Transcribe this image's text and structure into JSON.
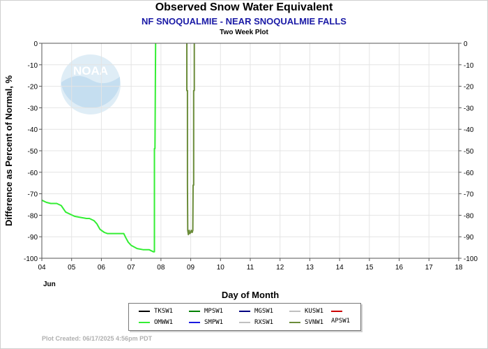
{
  "header": {
    "title": "Observed Snow Water Equivalent",
    "subtitle": "NF SNOQUALMIE - NEAR SNOQUALMIE FALLS",
    "subsubtitle": "Two Week Plot"
  },
  "footer": {
    "created": "Plot Created: 06/17/2025 4:56pm PDT"
  },
  "watermark": {
    "text": "NOAA"
  },
  "chart_data": {
    "type": "line",
    "title": "Observed Snow Water Equivalent",
    "xlabel": "Day of Month",
    "ylabel": "Difference as Percent of Normal, %",
    "month_label": "Jun",
    "xlim": [
      4,
      18
    ],
    "ylim": [
      -100,
      0
    ],
    "x_ticks": [
      "04",
      "05",
      "06",
      "07",
      "08",
      "09",
      "10",
      "11",
      "12",
      "13",
      "14",
      "15",
      "16",
      "17",
      "18"
    ],
    "y_ticks_left": [
      "0",
      "-10",
      "-20",
      "-30",
      "-40",
      "-50",
      "-60",
      "-70",
      "-80",
      "-90",
      "-100"
    ],
    "y_ticks_right": [
      "0",
      "-10",
      "-20",
      "-30",
      "-40",
      "-50",
      "-60",
      "-70",
      "-80",
      "-90",
      "-100"
    ],
    "grid": true,
    "legend_position": "bottom",
    "series": [
      {
        "name": "TKSW1",
        "color": "#000000",
        "x": [],
        "y": []
      },
      {
        "name": "MPSW1",
        "color": "#008000",
        "x": [],
        "y": []
      },
      {
        "name": "MGSW1",
        "color": "#000080",
        "x": [],
        "y": []
      },
      {
        "name": "KUSW1",
        "color": "#c0c0c0",
        "x": [],
        "y": []
      },
      {
        "name": "APSW1",
        "color": "#cc0000",
        "x": [],
        "y": []
      },
      {
        "name": "OMWW1",
        "color": "#33ee33",
        "x": [
          4.0,
          4.15,
          4.3,
          4.5,
          4.65,
          4.8,
          4.95,
          5.1,
          5.3,
          5.5,
          5.6,
          5.75,
          5.85,
          5.95,
          6.0,
          6.1,
          6.2,
          6.4,
          6.6,
          6.75,
          6.82,
          6.9,
          7.0,
          7.2,
          7.4,
          7.6,
          7.75,
          7.78,
          7.78,
          7.8,
          7.82
        ],
        "y": [
          -73,
          -74,
          -74.5,
          -74.5,
          -75.5,
          -78.5,
          -79.5,
          -80.5,
          -81,
          -81.5,
          -81.5,
          -82.5,
          -84,
          -86.5,
          -87,
          -88,
          -88.5,
          -88.5,
          -88.5,
          -88.5,
          -90.5,
          -92.5,
          -94,
          -95.5,
          -96,
          -96,
          -97,
          -97,
          -49,
          -49,
          0
        ]
      },
      {
        "name": "SMPW1",
        "color": "#1a1ae0",
        "x": [],
        "y": []
      },
      {
        "name": "RXSW1",
        "color": "#c0c0c0",
        "x": [],
        "y": []
      },
      {
        "name": "SVNW1",
        "color": "#6b8c3a",
        "x": [
          8.87,
          8.87,
          8.89,
          8.89,
          8.9,
          8.92,
          8.95,
          8.97,
          9.0,
          9.02,
          9.05,
          9.07,
          9.08,
          9.1,
          9.1,
          9.12,
          9.12
        ],
        "y": [
          0,
          -22,
          -22,
          -66,
          -87,
          -89,
          -87,
          -88.5,
          -88,
          -87,
          -88,
          -87,
          -66,
          -66,
          -22,
          -22,
          0
        ]
      }
    ]
  }
}
